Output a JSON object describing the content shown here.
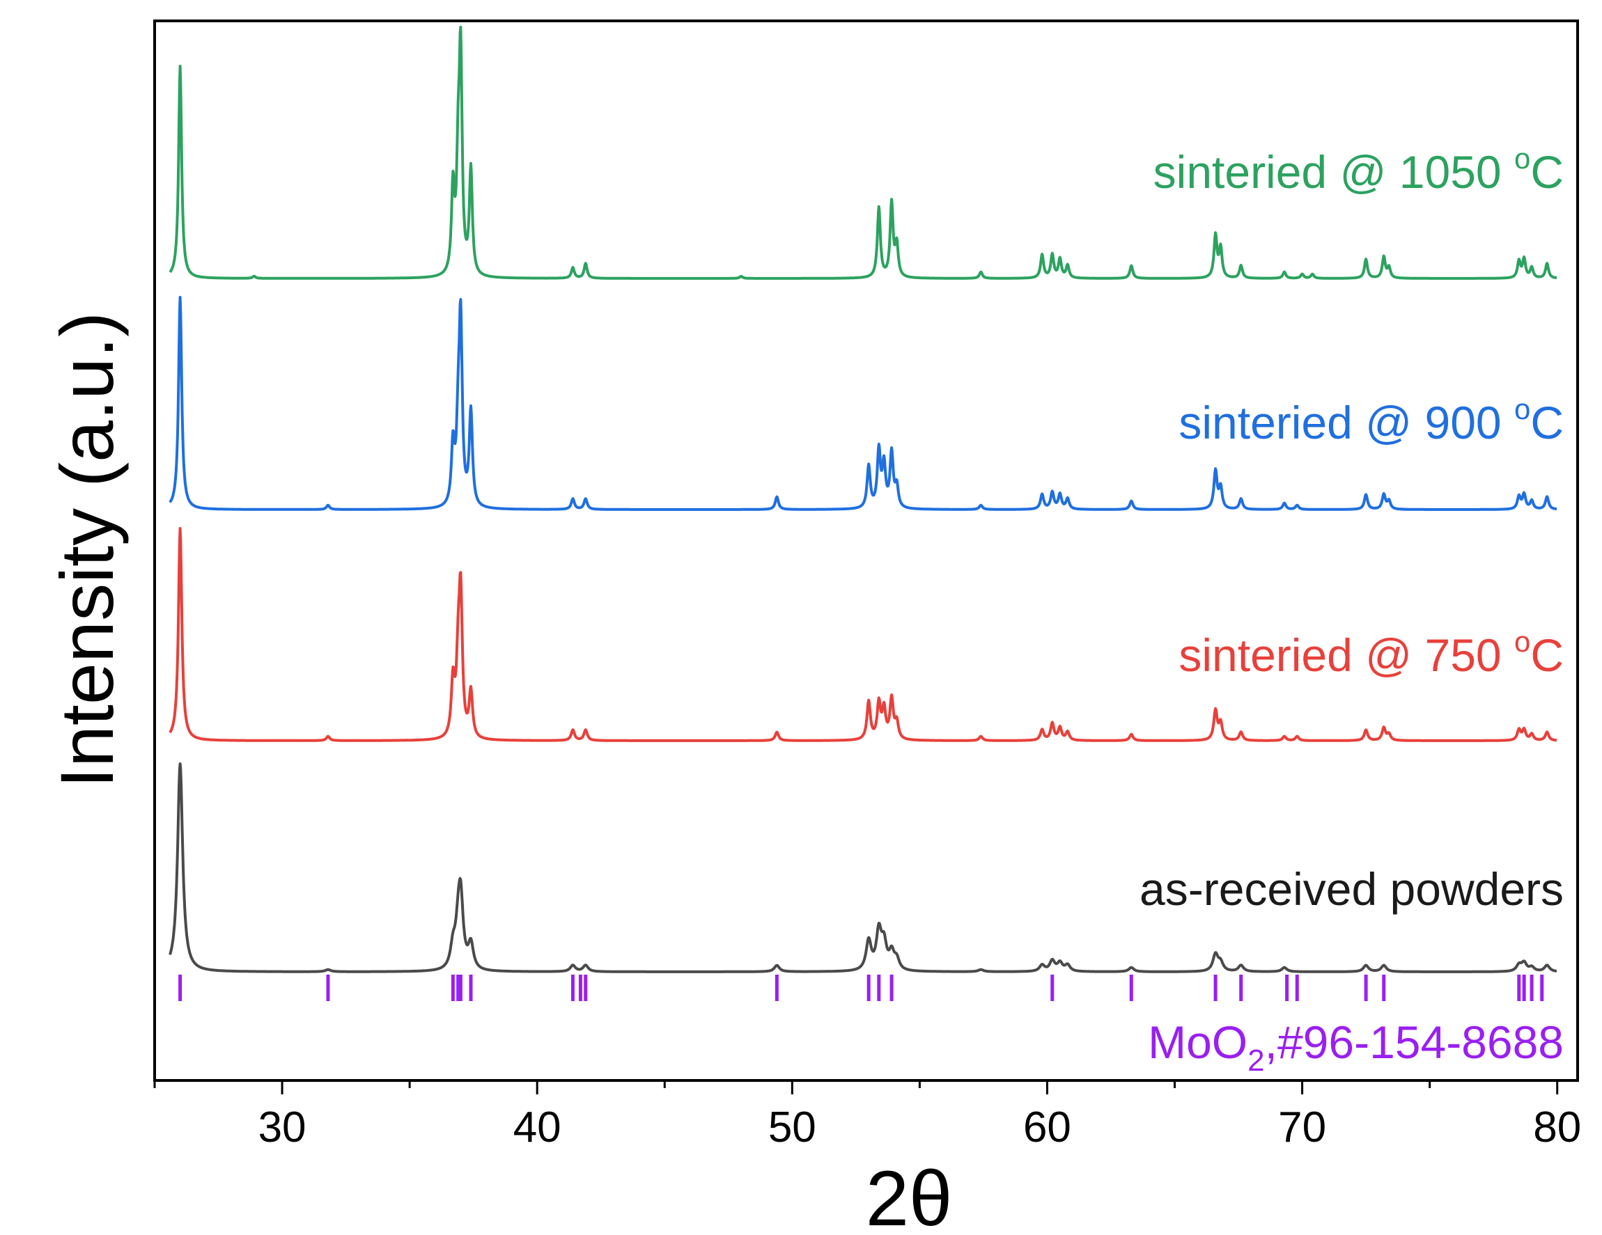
{
  "chart_data": {
    "type": "line",
    "title": "",
    "xlabel": "2θ",
    "ylabel": "Intensity (a.u.)",
    "xlim": [
      25,
      80.8
    ],
    "x_ticks": [
      30,
      40,
      50,
      60,
      70,
      80
    ],
    "x_tick_labels": [
      "30",
      "40",
      "50",
      "60",
      "70",
      "80"
    ],
    "y_ticks": [],
    "grid": false,
    "legend": "inline labels at right of each trace",
    "series": [
      {
        "name": "sinteried @ 1050 °C",
        "label_main": "sinteried @ 1050 ",
        "label_sup": "o",
        "label_end": "C",
        "color": "#2ca25f",
        "offset": 3,
        "width": 0.07,
        "peaks": [
          [
            26.0,
            1.0
          ],
          [
            28.9,
            0.01
          ],
          [
            36.7,
            0.4
          ],
          [
            36.9,
            0.45
          ],
          [
            37.0,
            1.0
          ],
          [
            37.4,
            0.5
          ],
          [
            41.4,
            0.05
          ],
          [
            41.9,
            0.07
          ],
          [
            48.0,
            0.01
          ],
          [
            53.4,
            0.33
          ],
          [
            53.9,
            0.35
          ],
          [
            54.1,
            0.15
          ],
          [
            57.4,
            0.03
          ],
          [
            59.8,
            0.11
          ],
          [
            60.2,
            0.11
          ],
          [
            60.5,
            0.09
          ],
          [
            60.8,
            0.06
          ],
          [
            63.3,
            0.06
          ],
          [
            66.6,
            0.2
          ],
          [
            66.8,
            0.14
          ],
          [
            67.6,
            0.06
          ],
          [
            69.3,
            0.03
          ],
          [
            70.0,
            0.02
          ],
          [
            70.4,
            0.02
          ],
          [
            72.5,
            0.09
          ],
          [
            73.2,
            0.1
          ],
          [
            73.4,
            0.05
          ],
          [
            78.5,
            0.08
          ],
          [
            78.7,
            0.09
          ],
          [
            79.0,
            0.05
          ],
          [
            79.6,
            0.07
          ]
        ]
      },
      {
        "name": "sinteried @ 900 °C",
        "label_main": "sinteried @ 900 ",
        "label_sup": "o",
        "label_end": "C",
        "color": "#1f6fe0",
        "offset": 2,
        "width": 0.075,
        "peaks": [
          [
            26.0,
            1.0
          ],
          [
            31.8,
            0.02
          ],
          [
            36.7,
            0.28
          ],
          [
            36.9,
            0.3
          ],
          [
            37.0,
            0.85
          ],
          [
            37.4,
            0.45
          ],
          [
            41.4,
            0.05
          ],
          [
            41.9,
            0.05
          ],
          [
            49.4,
            0.06
          ],
          [
            53.0,
            0.2
          ],
          [
            53.4,
            0.27
          ],
          [
            53.6,
            0.2
          ],
          [
            53.9,
            0.26
          ],
          [
            54.1,
            0.1
          ],
          [
            57.4,
            0.02
          ],
          [
            59.8,
            0.07
          ],
          [
            60.2,
            0.08
          ],
          [
            60.5,
            0.07
          ],
          [
            60.8,
            0.05
          ],
          [
            63.3,
            0.04
          ],
          [
            66.6,
            0.18
          ],
          [
            66.8,
            0.1
          ],
          [
            67.6,
            0.05
          ],
          [
            69.3,
            0.03
          ],
          [
            69.8,
            0.02
          ],
          [
            72.5,
            0.07
          ],
          [
            73.2,
            0.07
          ],
          [
            73.4,
            0.04
          ],
          [
            78.5,
            0.06
          ],
          [
            78.7,
            0.07
          ],
          [
            79.0,
            0.04
          ],
          [
            79.6,
            0.06
          ]
        ]
      },
      {
        "name": "sinteried @ 750 °C",
        "label_main": "sinteried @ 750 ",
        "label_sup": "o",
        "label_end": "C",
        "color": "#e8403a",
        "offset": 1,
        "width": 0.08,
        "peaks": [
          [
            26.0,
            1.0
          ],
          [
            31.8,
            0.02
          ],
          [
            36.7,
            0.26
          ],
          [
            36.9,
            0.3
          ],
          [
            37.0,
            0.65
          ],
          [
            37.4,
            0.22
          ],
          [
            41.4,
            0.05
          ],
          [
            41.9,
            0.05
          ],
          [
            49.4,
            0.04
          ],
          [
            53.0,
            0.18
          ],
          [
            53.4,
            0.17
          ],
          [
            53.6,
            0.14
          ],
          [
            53.9,
            0.19
          ],
          [
            54.1,
            0.08
          ],
          [
            57.4,
            0.02
          ],
          [
            59.8,
            0.05
          ],
          [
            60.2,
            0.08
          ],
          [
            60.5,
            0.06
          ],
          [
            60.8,
            0.04
          ],
          [
            63.3,
            0.03
          ],
          [
            66.6,
            0.14
          ],
          [
            66.8,
            0.08
          ],
          [
            67.6,
            0.04
          ],
          [
            69.3,
            0.02
          ],
          [
            69.8,
            0.02
          ],
          [
            72.5,
            0.05
          ],
          [
            73.2,
            0.06
          ],
          [
            73.4,
            0.03
          ],
          [
            78.5,
            0.05
          ],
          [
            78.7,
            0.05
          ],
          [
            79.0,
            0.03
          ],
          [
            79.6,
            0.04
          ]
        ]
      },
      {
        "name": "as-received powders",
        "label_main": "as-received powders",
        "label_sup": "",
        "label_end": "",
        "color": "#4a4a4a",
        "offset": 0,
        "width": 0.12,
        "peaks": [
          [
            26.0,
            0.98
          ],
          [
            31.8,
            0.01
          ],
          [
            36.7,
            0.1
          ],
          [
            36.9,
            0.15
          ],
          [
            37.0,
            0.32
          ],
          [
            37.4,
            0.12
          ],
          [
            41.4,
            0.03
          ],
          [
            41.9,
            0.03
          ],
          [
            49.4,
            0.03
          ],
          [
            53.0,
            0.14
          ],
          [
            53.4,
            0.18
          ],
          [
            53.6,
            0.12
          ],
          [
            53.9,
            0.08
          ],
          [
            54.1,
            0.05
          ],
          [
            57.4,
            0.01
          ],
          [
            59.8,
            0.03
          ],
          [
            60.2,
            0.05
          ],
          [
            60.5,
            0.04
          ],
          [
            60.8,
            0.03
          ],
          [
            63.3,
            0.02
          ],
          [
            66.6,
            0.08
          ],
          [
            66.8,
            0.04
          ],
          [
            67.6,
            0.03
          ],
          [
            69.3,
            0.02
          ],
          [
            72.5,
            0.03
          ],
          [
            73.2,
            0.03
          ],
          [
            78.5,
            0.03
          ],
          [
            78.7,
            0.04
          ],
          [
            79.0,
            0.02
          ],
          [
            79.6,
            0.03
          ]
        ]
      }
    ],
    "reference": {
      "label_main": "MoO",
      "label_sub": "2",
      "label_end": ",#96-154-8688",
      "color": "#9a1ff2",
      "positions": [
        26.0,
        31.8,
        36.7,
        36.9,
        37.0,
        37.4,
        41.4,
        41.7,
        41.9,
        49.4,
        53.0,
        53.4,
        53.9,
        60.2,
        63.3,
        66.6,
        67.6,
        69.4,
        69.8,
        72.5,
        73.2,
        78.5,
        78.7,
        79.0,
        79.4
      ]
    }
  }
}
